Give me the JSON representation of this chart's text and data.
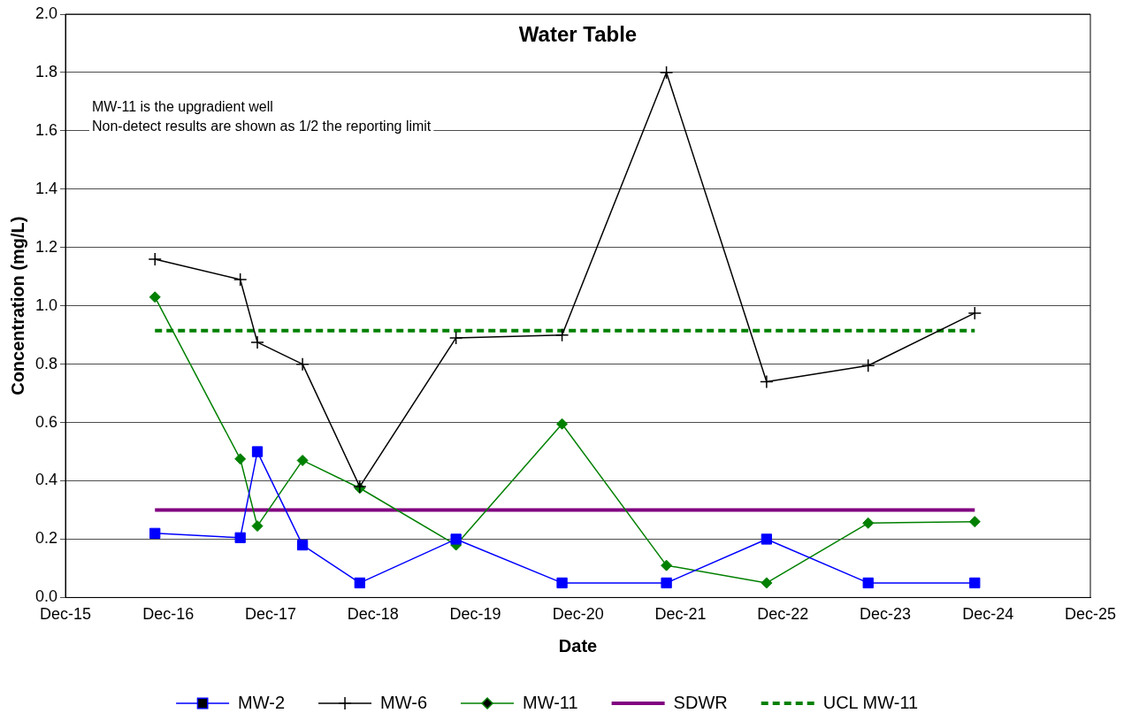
{
  "chart_data": {
    "type": "line",
    "title": "Water Table",
    "xlabel": "Date",
    "ylabel": "Concentration (mg/L)",
    "annotations": [
      "MW-11 is the upgradient well",
      "Non-detect results are shown as 1/2 the reporting limit"
    ],
    "x": [
      "2016-10-15",
      "2017-08-15",
      "2017-10-15",
      "2018-03-25",
      "2018-10-15",
      "2019-09-23",
      "2020-10-05",
      "2021-10-12",
      "2022-10-04",
      "2023-10-01",
      "2024-10-15"
    ],
    "series": [
      {
        "name": "MW-2",
        "color": "#0000ff",
        "marker": "square",
        "values": [
          0.22,
          0.205,
          0.5,
          0.18,
          0.05,
          0.2,
          0.05,
          0.05,
          0.2,
          0.05,
          0.05
        ]
      },
      {
        "name": "MW-6",
        "color": "#000000",
        "marker": "cross",
        "values": [
          1.16,
          1.09,
          0.875,
          0.8,
          0.38,
          0.89,
          0.9,
          1.8,
          0.74,
          0.795,
          0.975
        ]
      },
      {
        "name": "MW-11",
        "color": "#008000",
        "marker": "diamond",
        "values": [
          1.03,
          0.475,
          0.245,
          0.47,
          0.375,
          0.18,
          0.595,
          0.11,
          0.05,
          0.255,
          0.26
        ]
      },
      {
        "name": "SDWR",
        "color": "#800080",
        "marker": "none",
        "x": [
          "2016-10-15",
          "2024-10-15"
        ],
        "values": [
          0.3,
          0.3
        ]
      },
      {
        "name": "UCL MW-11",
        "color": "#008000",
        "marker": "none",
        "line_style": "dashed",
        "x": [
          "2016-10-15",
          "2024-10-15"
        ],
        "values": [
          0.915,
          0.915
        ]
      }
    ],
    "xlim": [
      "2015-12",
      "2025-12"
    ],
    "xticks": [
      {
        "value": "2015-12",
        "label": "Dec-15"
      },
      {
        "value": "2016-12",
        "label": "Dec-16"
      },
      {
        "value": "2017-12",
        "label": "Dec-17"
      },
      {
        "value": "2018-12",
        "label": "Dec-18"
      },
      {
        "value": "2019-12",
        "label": "Dec-19"
      },
      {
        "value": "2020-12",
        "label": "Dec-20"
      },
      {
        "value": "2021-12",
        "label": "Dec-21"
      },
      {
        "value": "2022-12",
        "label": "Dec-22"
      },
      {
        "value": "2023-12",
        "label": "Dec-23"
      },
      {
        "value": "2024-12",
        "label": "Dec-24"
      },
      {
        "value": "2025-12",
        "label": "Dec-25"
      }
    ],
    "ylim": [
      0,
      2
    ],
    "yticks": [
      {
        "value": 0,
        "label": "0.0"
      },
      {
        "value": 0.2,
        "label": "0.2"
      },
      {
        "value": 0.4,
        "label": "0.4"
      },
      {
        "value": 0.6,
        "label": "0.6"
      },
      {
        "value": 0.8,
        "label": "0.8"
      },
      {
        "value": 1,
        "label": "1.0"
      },
      {
        "value": 1.2,
        "label": "1.2"
      },
      {
        "value": 1.4,
        "label": "1.4"
      },
      {
        "value": 1.6,
        "label": "1.6"
      },
      {
        "value": 1.8,
        "label": "1.8"
      },
      {
        "value": 2,
        "label": "2.0"
      }
    ],
    "grid": "y",
    "legend": "bottom"
  }
}
